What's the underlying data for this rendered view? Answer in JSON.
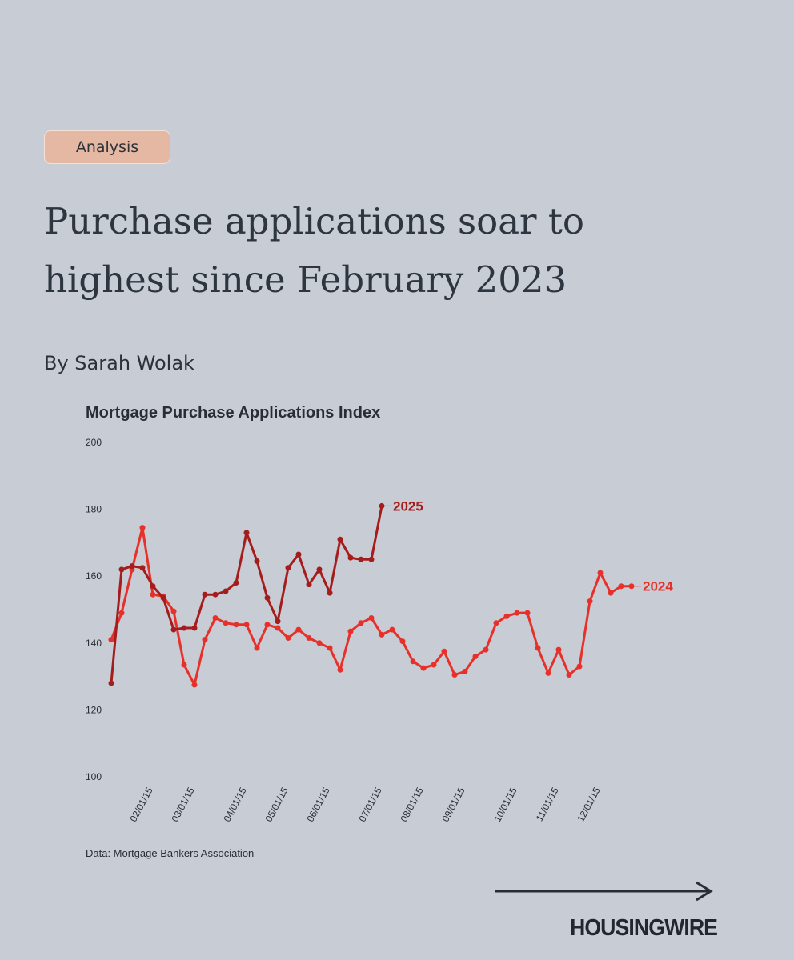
{
  "header": {
    "tag": "Analysis",
    "title": "Purchase applications soar to highest since February 2023",
    "byline": "By Sarah Wolak"
  },
  "chart_data": {
    "type": "line",
    "title": "Mortgage Purchase Applications Index",
    "source": "Data: Mortgage Bankers Association",
    "categories": [
      null,
      null,
      null,
      null,
      "02/01/15",
      null,
      null,
      null,
      "03/01/15",
      null,
      null,
      null,
      null,
      "04/01/15",
      null,
      null,
      null,
      "05/01/15",
      null,
      null,
      null,
      "06/01/15",
      null,
      null,
      null,
      null,
      "07/01/15",
      null,
      null,
      null,
      "08/01/15",
      null,
      null,
      null,
      "09/01/15",
      null,
      null,
      null,
      null,
      "10/01/15",
      null,
      null,
      null,
      "11/01/15",
      null,
      null,
      null,
      "12/01/15",
      null,
      null,
      null
    ],
    "series": [
      {
        "name": "2024",
        "color": "#e8302a",
        "values": [
          141,
          149,
          162,
          174.5,
          154.5,
          154,
          149.5,
          133.5,
          127.5,
          141,
          147.5,
          146,
          145.5,
          145.5,
          138.5,
          145.5,
          144.5,
          141.5,
          144,
          141.5,
          140,
          138.5,
          132,
          143.5,
          146,
          147.5,
          142.5,
          144,
          140.5,
          134.5,
          132.5,
          133.5,
          137.5,
          130.5,
          131.5,
          136,
          138,
          146,
          148,
          149,
          149,
          138.5,
          131,
          138,
          130.5,
          133,
          152.5,
          161,
          155,
          157,
          157
        ]
      },
      {
        "name": "2025",
        "color": "#a51c1c",
        "values": [
          128,
          162,
          163,
          162.5,
          157,
          153.5,
          144,
          144.5,
          144.5,
          154.5,
          154.5,
          155.5,
          158,
          173,
          164.5,
          153.5,
          146.5,
          162.5,
          166.5,
          157.5,
          162,
          155,
          171,
          165.5,
          165,
          165,
          181,
          null,
          null,
          null,
          null,
          null,
          null,
          null,
          null,
          null,
          null,
          null,
          null,
          null,
          null,
          null,
          null,
          null,
          null,
          null,
          null,
          null,
          null,
          null,
          null
        ]
      }
    ],
    "ylim": [
      100,
      200
    ],
    "yticks": [
      100,
      120,
      140,
      160,
      180,
      200
    ],
    "grid": false
  },
  "brand": "HOUSINGWIRE"
}
